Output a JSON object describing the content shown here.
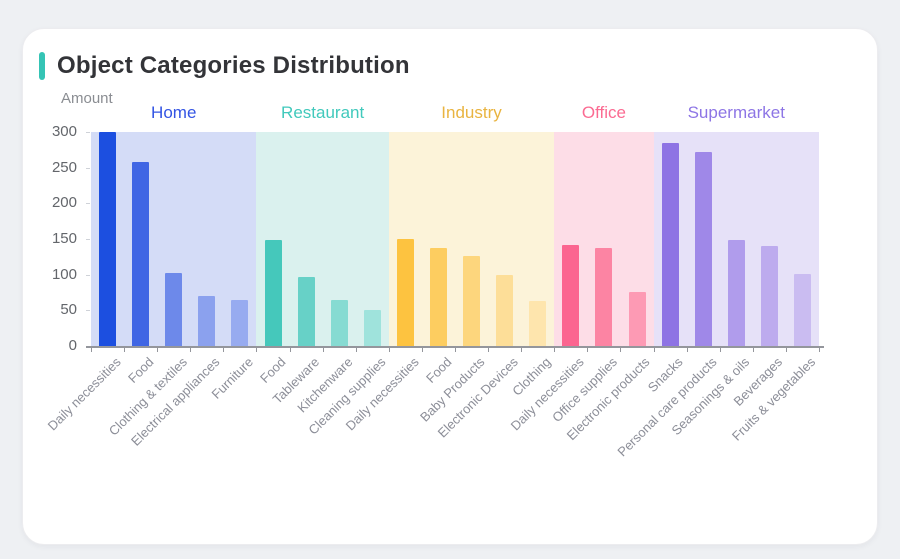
{
  "page": {
    "background_color": "#eef0f3",
    "card_background_color": "#ffffff"
  },
  "header": {
    "title": "Object Categories Distribution",
    "accent_color": "#35c4b5"
  },
  "chart_data": {
    "type": "bar",
    "title": "Object Categories Distribution",
    "xlabel": "",
    "ylabel": "Amount",
    "ylim": [
      0,
      300
    ],
    "yticks": [
      0,
      50,
      100,
      150,
      200,
      250,
      300
    ],
    "grid": false,
    "legend_position": "none",
    "axis_color": "#94969c",
    "groups": [
      {
        "name": "Home",
        "name_color": "#3354e4",
        "band_color": "#d4dcf7",
        "bars": [
          {
            "label": "Daily necessities",
            "value": 300,
            "color": "#1c4fe0"
          },
          {
            "label": "Food",
            "value": 258,
            "color": "#4066e4"
          },
          {
            "label": "Clothing & textiles",
            "value": 102,
            "color": "#6d89ea"
          },
          {
            "label": "Electrical appliances",
            "value": 70,
            "color": "#8ba1ee"
          },
          {
            "label": "Furniture",
            "value": 65,
            "color": "#97abf0"
          }
        ]
      },
      {
        "name": "Restaurant",
        "name_color": "#41c9bc",
        "band_color": "#daf1ee",
        "bars": [
          {
            "label": "Food",
            "value": 148,
            "color": "#45c8bb"
          },
          {
            "label": "Tableware",
            "value": 97,
            "color": "#67d1c7"
          },
          {
            "label": "Kitchenware",
            "value": 65,
            "color": "#86dbd2"
          },
          {
            "label": "Cleaning supplies",
            "value": 51,
            "color": "#9fe3dc"
          }
        ]
      },
      {
        "name": "Industry",
        "name_color": "#e9b440",
        "band_color": "#fcf3d9",
        "bars": [
          {
            "label": "Daily necessities",
            "value": 150,
            "color": "#fdc340"
          },
          {
            "label": "Food",
            "value": 138,
            "color": "#fdcd60"
          },
          {
            "label": "Baby Products",
            "value": 126,
            "color": "#fdd67d"
          },
          {
            "label": "Electronic Devices",
            "value": 99,
            "color": "#fdde98"
          },
          {
            "label": "Clothing",
            "value": 63,
            "color": "#fee5ad"
          }
        ]
      },
      {
        "name": "Office",
        "name_color": "#fb6b92",
        "band_color": "#fddde7",
        "bars": [
          {
            "label": "Daily necessities",
            "value": 142,
            "color": "#fb6590"
          },
          {
            "label": "Office supplies",
            "value": 138,
            "color": "#fc84a3"
          },
          {
            "label": "Electronic products",
            "value": 75,
            "color": "#fd9ab4"
          }
        ]
      },
      {
        "name": "Supermarket",
        "name_color": "#8d75e5",
        "band_color": "#e6e1f8",
        "bars": [
          {
            "label": "Snacks",
            "value": 285,
            "color": "#8e73e4"
          },
          {
            "label": "Personal care products",
            "value": 272,
            "color": "#9f88e8"
          },
          {
            "label": "Seasonings & oils",
            "value": 148,
            "color": "#b09cec"
          },
          {
            "label": "Beverages",
            "value": 140,
            "color": "#bdabee"
          },
          {
            "label": "Fruits & vegetables",
            "value": 101,
            "color": "#cabcf1"
          }
        ]
      }
    ]
  }
}
